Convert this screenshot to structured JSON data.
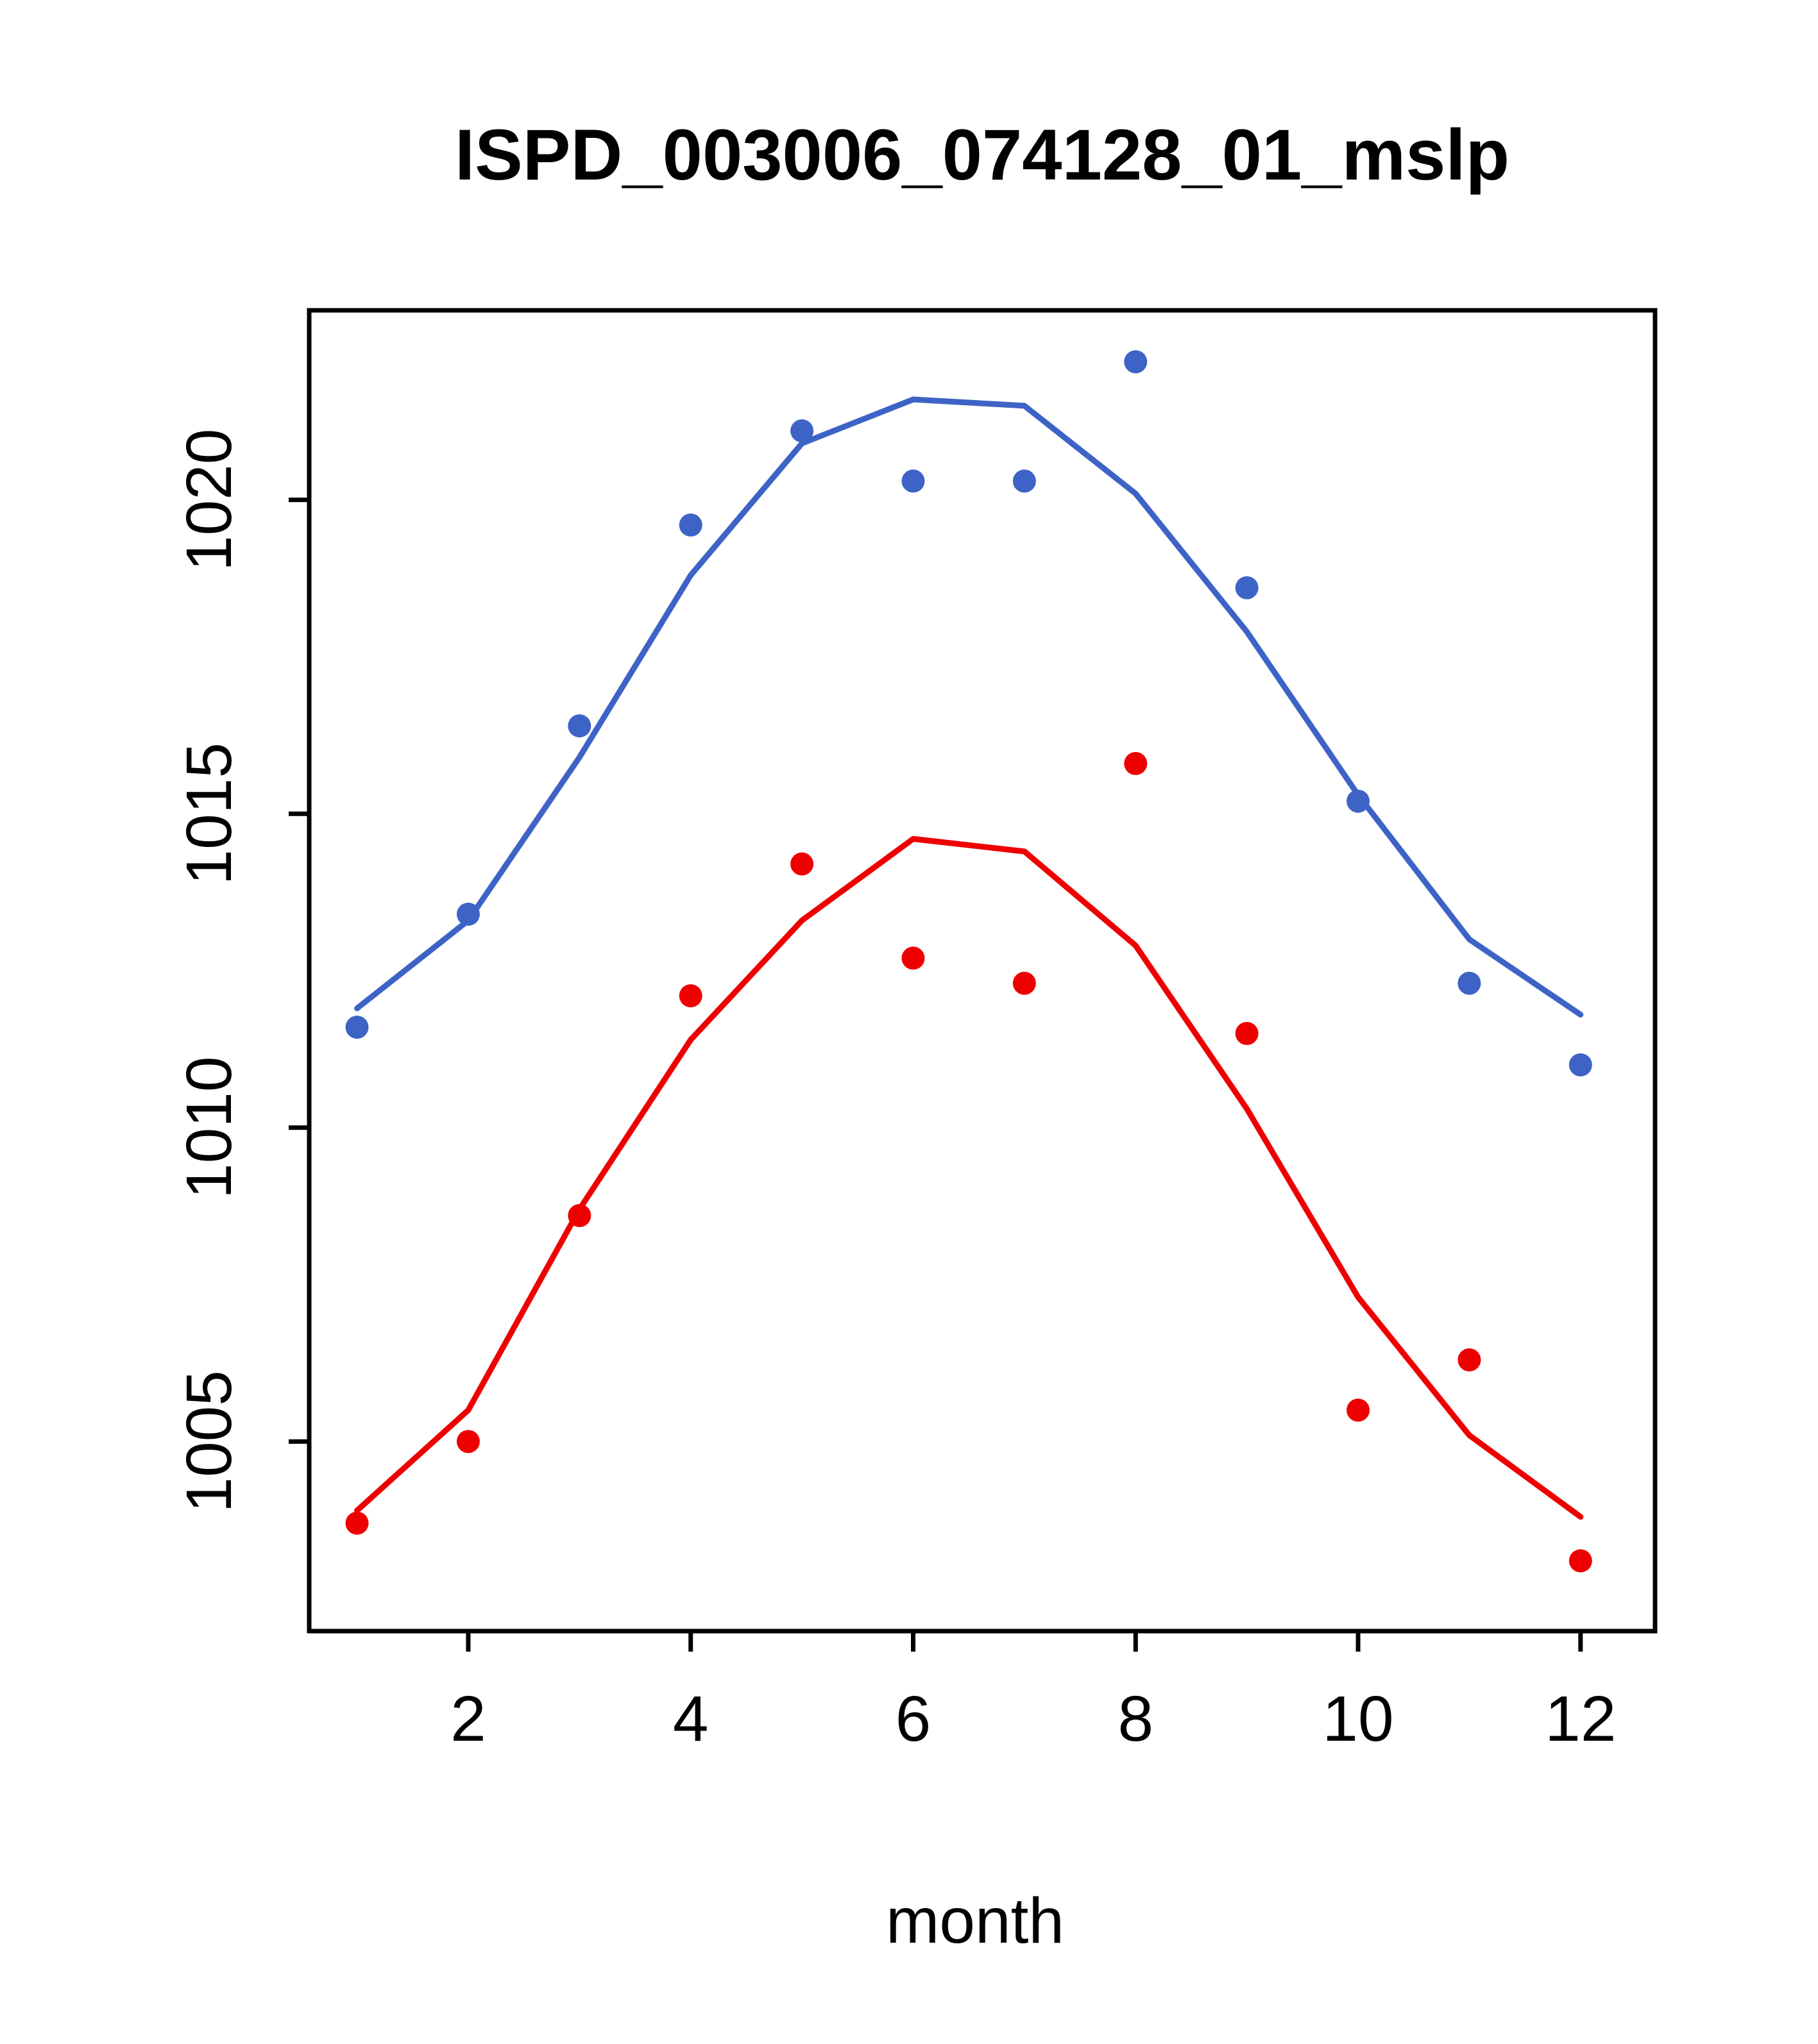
{
  "chart_data": {
    "type": "line",
    "title": "ISPD_003006_074128_01_mslp",
    "xlabel": "month",
    "ylabel": "",
    "x": [
      1,
      2,
      3,
      4,
      5,
      6,
      7,
      8,
      9,
      10,
      11,
      12
    ],
    "xticks": [
      2,
      4,
      6,
      8,
      10,
      12
    ],
    "yticks": [
      1005,
      1010,
      1015,
      1020
    ],
    "xlim": [
      0.57,
      12.67
    ],
    "ylim": [
      1001.98,
      1023.02
    ],
    "grid": false,
    "legend": "none",
    "colors": {
      "blue": "#3E63C6",
      "red": "#EE0000"
    },
    "series": [
      {
        "name": "blue-observed-points",
        "mode": "scatter",
        "color": "#3E63C6",
        "values": [
          1011.6,
          1013.4,
          1016.4,
          1019.6,
          1021.1,
          1020.3,
          1020.3,
          1022.2,
          1018.6,
          1015.2,
          1012.3,
          1011.0
        ]
      },
      {
        "name": "blue-fitted-line",
        "mode": "line",
        "color": "#3E63C6",
        "values": [
          1011.9,
          1013.3,
          1015.9,
          1018.8,
          1020.9,
          1021.6,
          1021.5,
          1020.1,
          1017.9,
          1015.3,
          1013.0,
          1011.8
        ]
      },
      {
        "name": "red-observed-points",
        "mode": "scatter",
        "color": "#EE0000",
        "values": [
          1003.7,
          1005.0,
          1008.6,
          1012.1,
          1014.2,
          1012.7,
          1012.3,
          1015.8,
          1011.5,
          1005.5,
          1006.3,
          1003.1
        ]
      },
      {
        "name": "red-fitted-line",
        "mode": "line",
        "color": "#EE0000",
        "values": [
          1003.9,
          1005.5,
          1008.7,
          1011.4,
          1013.3,
          1014.6,
          1014.4,
          1012.9,
          1010.3,
          1007.3,
          1005.1,
          1003.8
        ]
      }
    ]
  }
}
